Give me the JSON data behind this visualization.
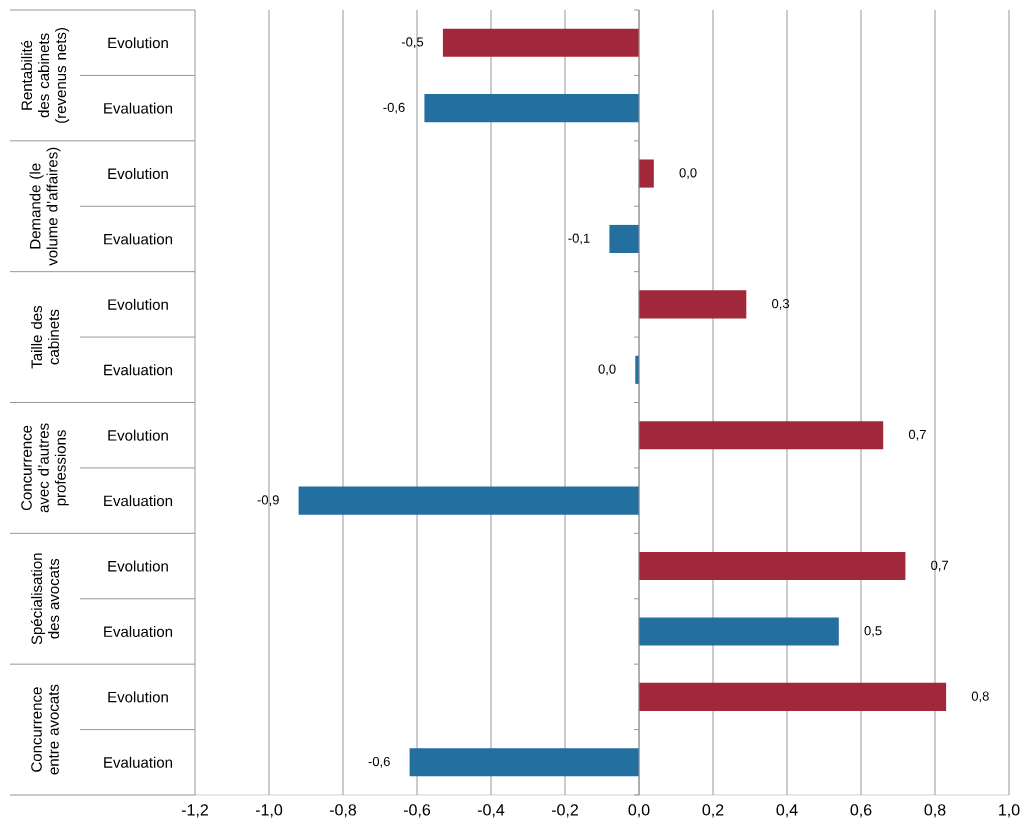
{
  "chart_data": {
    "type": "bar",
    "orientation": "horizontal",
    "categories": [
      "Evolution",
      "Evaluation",
      "Evolution",
      "Evaluation",
      "Evolution",
      "Evaluation",
      "Evolution",
      "Evaluation",
      "Evolution",
      "Evaluation",
      "Evolution",
      "Evaluation"
    ],
    "values": [
      -0.53,
      -0.58,
      0.04,
      -0.08,
      0.29,
      -0.01,
      0.66,
      -0.92,
      0.72,
      0.54,
      0.83,
      -0.62
    ],
    "colors": [
      "#a0283a",
      "#236fa0",
      "#a0283a",
      "#236fa0",
      "#a0283a",
      "#236fa0",
      "#a0283a",
      "#236fa0",
      "#a0283a",
      "#236fa0",
      "#a0283a",
      "#236fa0"
    ],
    "value_labels": [
      "-0,5",
      "-0,6",
      "0,0",
      "-0,1",
      "0,3",
      "0,0",
      "0,7",
      "-0,9",
      "0,7",
      "0,5",
      "0,8",
      "-0,6"
    ],
    "annotations": [
      "Rentabilité des cabinets (revenus nets)",
      "Demande (le volume d’affaires)",
      "Taille des cabinets",
      "Concurrence avec d’autres professions",
      "Spécialisation des avocats",
      "Concurrence entre avocats"
    ],
    "xlim": [
      -1.2,
      1.0
    ],
    "xticks": [
      {
        "value": -1.2,
        "label": "-1,2"
      },
      {
        "value": -1.0,
        "label": "-1,0"
      },
      {
        "value": -0.8,
        "label": "-0,8"
      },
      {
        "value": -0.6,
        "label": "-0,6"
      },
      {
        "value": -0.4,
        "label": "-0,4"
      },
      {
        "value": -0.2,
        "label": "-0,2"
      },
      {
        "value": 0,
        "label": "0,0"
      },
      {
        "value": 0.2,
        "label": "0,2"
      },
      {
        "value": 0.4,
        "label": "0,4"
      },
      {
        "value": 0.6,
        "label": "0,6"
      },
      {
        "value": 0.8,
        "label": "0,8"
      },
      {
        "value": 1.0,
        "label": "1,0"
      }
    ],
    "grid": "x"
  }
}
